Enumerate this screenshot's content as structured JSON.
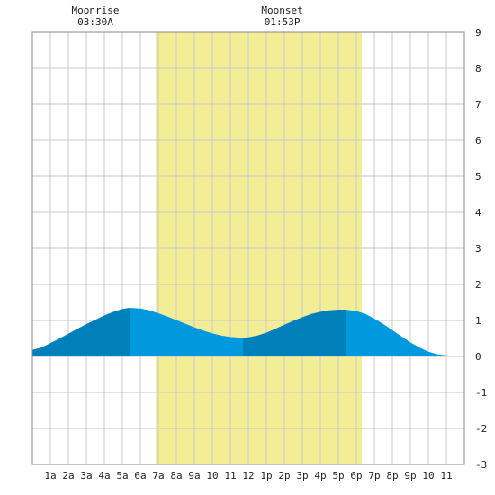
{
  "chart_data": {
    "type": "area",
    "title": "",
    "xlabel": "",
    "ylabel": "",
    "xlim": [
      0,
      24
    ],
    "ylim": [
      -3,
      9
    ],
    "y_ticks": [
      -3,
      -2,
      -1,
      0,
      1,
      2,
      3,
      4,
      5,
      6,
      7,
      8,
      9
    ],
    "x_tick_labels": [
      "1a",
      "2a",
      "3a",
      "4a",
      "5a",
      "6a",
      "7a",
      "8a",
      "9a",
      "10",
      "11",
      "12",
      "1p",
      "2p",
      "3p",
      "4p",
      "5p",
      "6p",
      "7p",
      "8p",
      "9p",
      "10",
      "11"
    ],
    "grid": true,
    "daylight": {
      "start": 6.85,
      "end": 18.3,
      "color": "#f2ee96"
    },
    "moon_events": [
      {
        "label": "Moonrise",
        "time": "03:30A",
        "hour": 3.5
      },
      {
        "label": "Moonset",
        "time": "01:53P",
        "hour": 13.88
      }
    ],
    "tide_extremes": [
      {
        "type": "high",
        "hour": 5.4,
        "value": 1.35
      },
      {
        "type": "low",
        "hour": 11.7,
        "value": 0.52
      },
      {
        "type": "high",
        "hour": 17.4,
        "value": 1.3
      },
      {
        "type": "low",
        "hour": 24.0,
        "value": 0.0
      }
    ],
    "series": [
      {
        "x": [
          0,
          0.5,
          1,
          1.5,
          2,
          2.5,
          3,
          3.5,
          4,
          4.5,
          5,
          5.4,
          6,
          6.5,
          7,
          7.5,
          8,
          8.5,
          9,
          9.5,
          10,
          10.5,
          11,
          11.7,
          12,
          12.5,
          13,
          13.5,
          14,
          14.5,
          15,
          15.5,
          16,
          16.5,
          17,
          17.4,
          18,
          18.5,
          19,
          19.5,
          20,
          20.5,
          21,
          21.5,
          22,
          22.5,
          23,
          23.5,
          24
        ],
        "values": [
          0.18,
          0.25,
          0.37,
          0.5,
          0.63,
          0.77,
          0.9,
          1.02,
          1.14,
          1.24,
          1.32,
          1.35,
          1.33,
          1.28,
          1.2,
          1.11,
          1.01,
          0.91,
          0.81,
          0.72,
          0.64,
          0.58,
          0.54,
          0.52,
          0.53,
          0.58,
          0.66,
          0.77,
          0.88,
          0.99,
          1.09,
          1.18,
          1.24,
          1.28,
          1.3,
          1.3,
          1.26,
          1.18,
          1.05,
          0.9,
          0.73,
          0.56,
          0.39,
          0.25,
          0.13,
          0.06,
          0.03,
          0.01,
          0.0
        ]
      }
    ],
    "colors": {
      "tide_light": "#0099dd",
      "tide_dark": "#0080bb",
      "grid": "#c8c8c8",
      "frame": "#888888"
    }
  }
}
